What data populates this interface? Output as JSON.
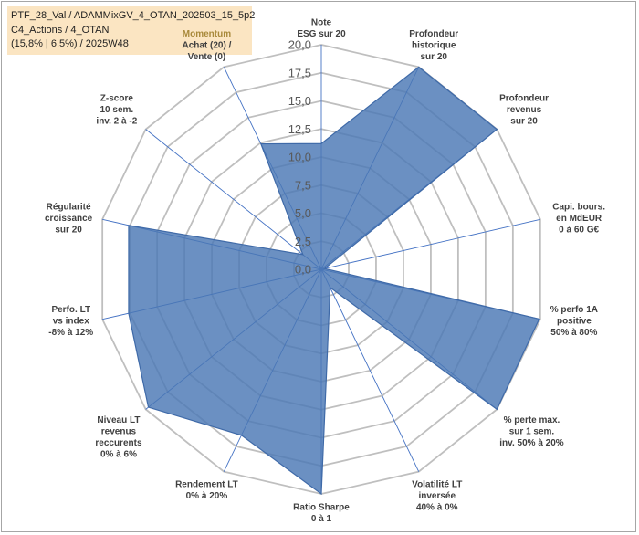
{
  "header": {
    "line1": "PTF_28_Val / ADAMMixGV_4_OTAN_202503_15_5p2",
    "line2": "C4_Actions / 4_OTAN",
    "line3": "(15,8% | 6,5%) / 2025W48"
  },
  "colors": {
    "fill": "#4a77b5",
    "stroke": "#3f6aa8",
    "grid": "#bfbfbf",
    "spoke": "#4472c4",
    "title_bg": "#fbe5c2"
  },
  "chart_data": {
    "type": "radar",
    "title": "PTF_28_Val / ADAMMixGV_4_OTAN_202503_15_5p2",
    "rmin": 0,
    "rmax": 20,
    "tick_labels": [
      "0,0",
      "2,5",
      "5,0",
      "7,5",
      "10,0",
      "12,5",
      "15,0",
      "17,5",
      "20,0"
    ],
    "categories": [
      {
        "label": [
          "Note",
          "ESG sur 20"
        ],
        "value": 11.2,
        "highlight": false
      },
      {
        "label": [
          "Profondeur",
          "historique",
          "sur 20"
        ],
        "value": 20.0,
        "highlight": false
      },
      {
        "label": [
          "Profondeur",
          "revenus",
          "sur 20"
        ],
        "value": 20.0,
        "highlight": false
      },
      {
        "label": [
          "Capi. bours.",
          "en MdEUR",
          "0 à 60 G€"
        ],
        "value": 0.3,
        "highlight": false
      },
      {
        "label": [
          "% perfo 1A",
          "positive",
          "50% à 80%"
        ],
        "value": 19.9,
        "highlight": false
      },
      {
        "label": [
          "% perte max.",
          "sur 1 sem.",
          "inv. 50% à 20%"
        ],
        "value": 20.0,
        "highlight": false
      },
      {
        "label": [
          "Volatilité LT",
          "inversée",
          "40% à 0%"
        ],
        "value": 1.8,
        "highlight": false
      },
      {
        "label": [
          "Ratio Sharpe",
          "0 à 1"
        ],
        "value": 20.0,
        "highlight": false
      },
      {
        "label": [
          "Rendement LT",
          "0% à 20%"
        ],
        "value": 16.4,
        "highlight": false
      },
      {
        "label": [
          "Niveau LT",
          "revenus",
          "reccurents",
          "0% à 6%"
        ],
        "value": 19.7,
        "highlight": false
      },
      {
        "label": [
          "Perfo. LT",
          "vs index",
          "-8% à 12%"
        ],
        "value": 17.6,
        "highlight": false
      },
      {
        "label": [
          "Régularité",
          "croissance",
          "sur 20"
        ],
        "value": 17.6,
        "highlight": false
      },
      {
        "label": [
          "Z-score",
          "10 sem.",
          "inv. 2 à -2"
        ],
        "value": 2.1,
        "highlight": false
      },
      {
        "label": [
          "Momentum",
          "Achat (20) /",
          "Vente (0)"
        ],
        "value": 12.4,
        "highlight": true
      }
    ]
  }
}
